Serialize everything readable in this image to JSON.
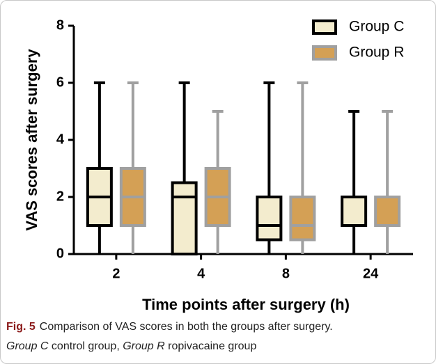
{
  "chart_data": {
    "type": "box",
    "xlabel": "Time points after surgery (h)",
    "ylabel": "VAS scores after surgery",
    "categories": [
      "2",
      "4",
      "8",
      "24"
    ],
    "ylim": [
      0,
      8
    ],
    "yticks": [
      0,
      2,
      4,
      6,
      8
    ],
    "legend": "upper right",
    "series": [
      {
        "name": "Group C",
        "color": "#f3ecce",
        "edge": "#000000",
        "min": [
          0,
          0,
          0,
          0
        ],
        "q1": [
          1,
          0,
          0.5,
          1
        ],
        "median": [
          2,
          2,
          1,
          1
        ],
        "q3": [
          3,
          2.5,
          2,
          2
        ],
        "max": [
          6,
          6,
          6,
          5
        ]
      },
      {
        "name": "Group R",
        "color": "#d4a055",
        "edge": "#a0a0a0",
        "min": [
          0,
          0,
          0,
          0
        ],
        "q1": [
          1,
          1,
          0.5,
          1
        ],
        "median": [
          2,
          2,
          1,
          1
        ],
        "q3": [
          3,
          3,
          2,
          2
        ],
        "max": [
          6,
          5,
          6,
          5
        ]
      }
    ]
  },
  "caption": {
    "label": "Fig. 5",
    "text": "Comparison of VAS scores in both the groups after surgery.",
    "parts": [
      "Group C",
      "control group,",
      "Group R",
      "ropivacaine group"
    ]
  }
}
